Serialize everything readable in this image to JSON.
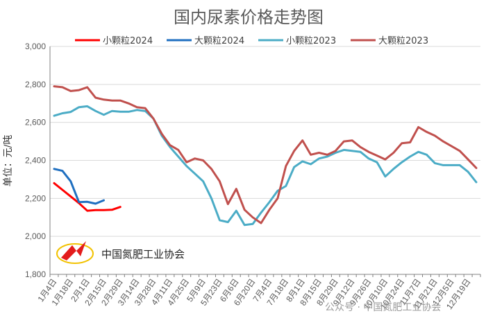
{
  "chart_data": {
    "type": "line",
    "title": "国内尿素价格走势图",
    "ylabel": "单位：元/吨",
    "ylim": [
      1800,
      3000
    ],
    "yticks": [
      "1,800",
      "2,000",
      "2,200",
      "2,400",
      "2,600",
      "2,800",
      "3,000"
    ],
    "x_labels": [
      "1月4日",
      "1月18日",
      "2月1日",
      "2月15日",
      "2月29日",
      "3月14日",
      "3月28日",
      "4月11日",
      "4月25日",
      "5月9日",
      "5月23日",
      "6月6日",
      "6月20日",
      "7月4日",
      "7月18日",
      "8月1日",
      "8月15日",
      "8月29日",
      "9月12日",
      "9月26日",
      "10月10日",
      "10月24日",
      "11月7日",
      "11月21日",
      "12月5日",
      "12月19日"
    ],
    "legend_position": "top",
    "series": [
      {
        "name": "小颗粒2024",
        "color": "#ff0000",
        "values": [
          2280,
          2245,
          2210,
          2175,
          2135,
          2138,
          2138,
          2140,
          2155
        ]
      },
      {
        "name": "大颗粒2024",
        "color": "#1f6fc0",
        "values": [
          2355,
          2345,
          2290,
          2180,
          2182,
          2172,
          2190
        ]
      },
      {
        "name": "小颗粒2023",
        "color": "#4bacc6",
        "values": [
          2635,
          2648,
          2655,
          2680,
          2685,
          2660,
          2640,
          2660,
          2656,
          2656,
          2665,
          2660,
          2620,
          2530,
          2470,
          2420,
          2370,
          2330,
          2290,
          2200,
          2085,
          2075,
          2135,
          2060,
          2065,
          2125,
          2180,
          2240,
          2265,
          2365,
          2395,
          2380,
          2410,
          2420,
          2440,
          2455,
          2450,
          2445,
          2410,
          2390,
          2315,
          2355,
          2390,
          2420,
          2445,
          2430,
          2385,
          2375,
          2375,
          2375,
          2340,
          2285
        ]
      },
      {
        "name": "大颗粒2023",
        "color": "#c0504d",
        "values": [
          2790,
          2785,
          2765,
          2770,
          2785,
          2730,
          2720,
          2715,
          2715,
          2700,
          2680,
          2675,
          2620,
          2540,
          2480,
          2455,
          2390,
          2410,
          2400,
          2355,
          2290,
          2170,
          2250,
          2140,
          2100,
          2070,
          2140,
          2200,
          2370,
          2450,
          2505,
          2430,
          2440,
          2430,
          2450,
          2500,
          2505,
          2470,
          2445,
          2425,
          2405,
          2440,
          2490,
          2495,
          2575,
          2550,
          2530,
          2500,
          2475,
          2450,
          2405,
          2360
        ]
      }
    ]
  },
  "organization": "中国氮肥工业协会",
  "watermark": "公众号 · 中国氮肥工业协会"
}
